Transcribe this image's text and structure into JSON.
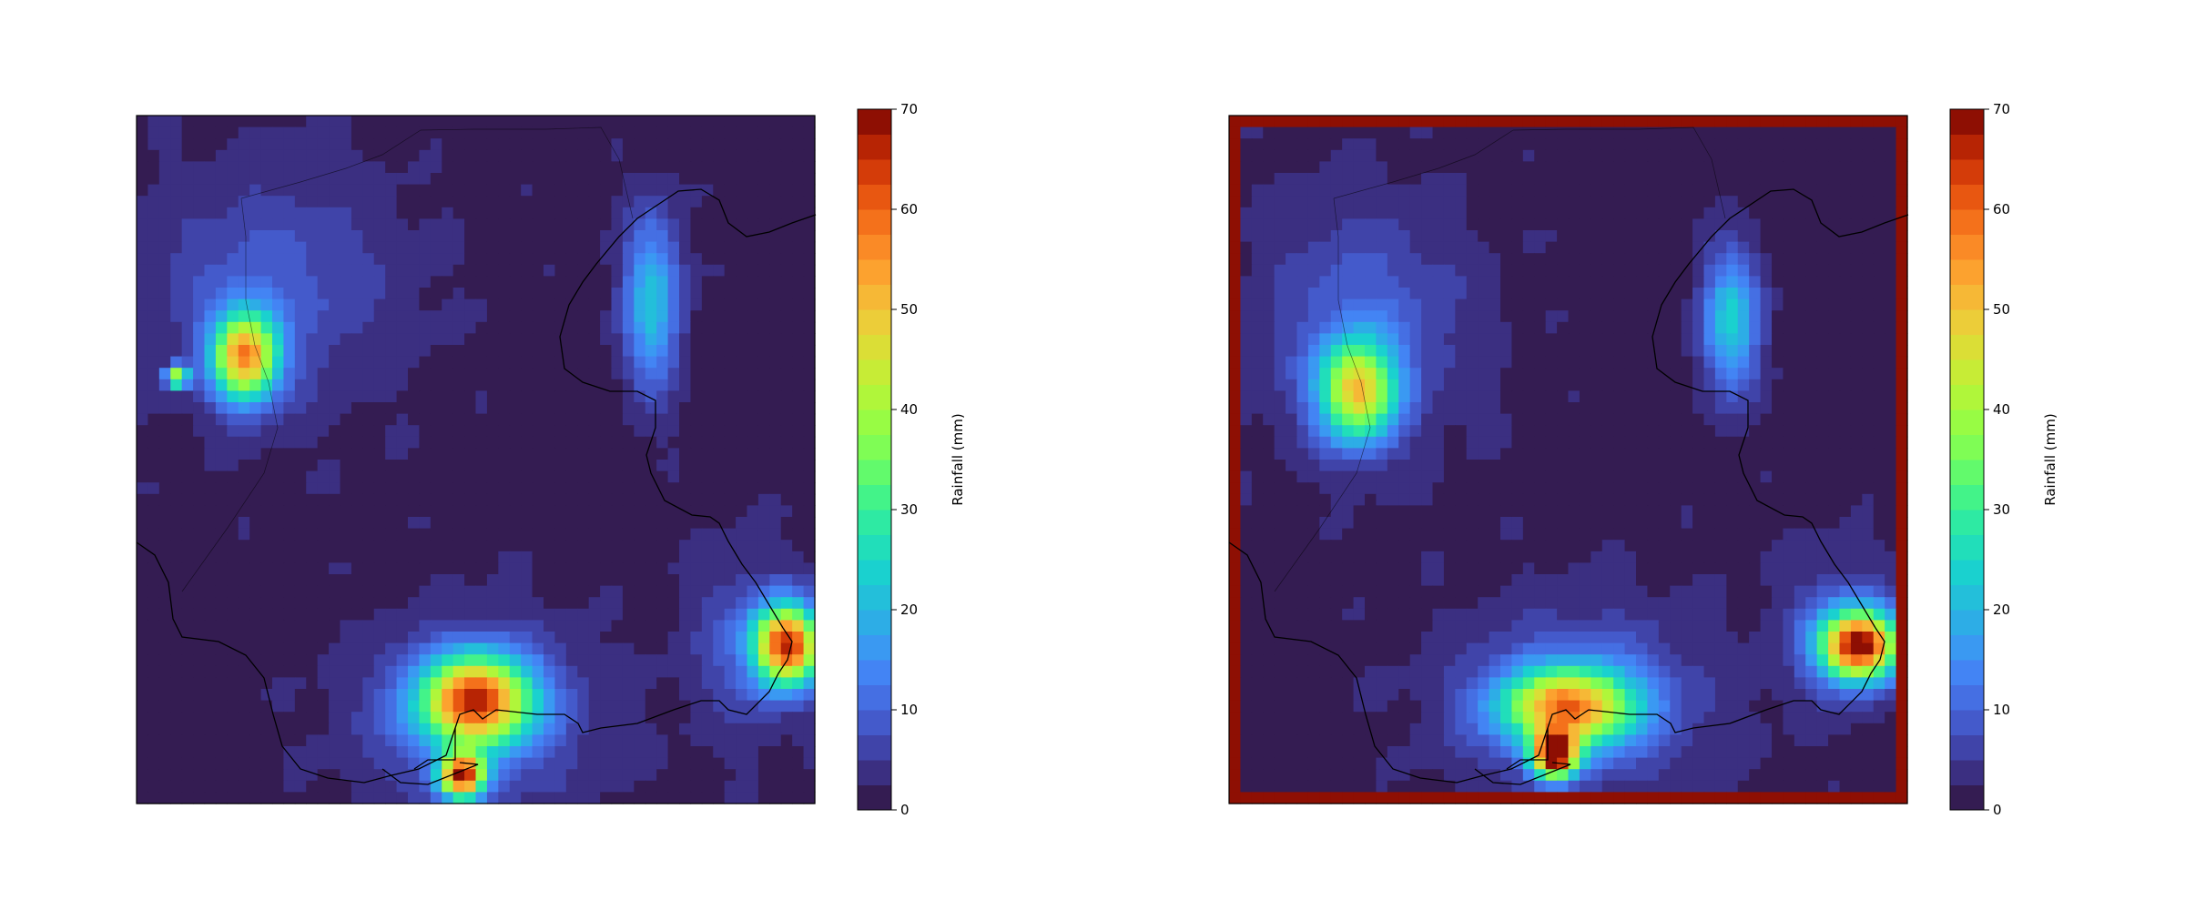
{
  "chart_data": [
    {
      "type": "heatmap",
      "title": "",
      "xlabel": "",
      "ylabel": "",
      "colorbar": {
        "label": "Rainfall (mm)",
        "range": [
          0,
          70
        ],
        "ticks": [
          0,
          10,
          20,
          30,
          40,
          50,
          60,
          70
        ],
        "colormap": "turbo",
        "levels": 28
      },
      "background_value": 1,
      "regions": [
        {
          "name": "west-cluster",
          "cx": 0.16,
          "cy": 0.35,
          "rx": 0.06,
          "ry": 0.08,
          "peak": 52
        },
        {
          "name": "west-broad",
          "cx": 0.2,
          "cy": 0.25,
          "rx": 0.22,
          "ry": 0.2,
          "peak": 7
        },
        {
          "name": "west-spot",
          "cx": 0.06,
          "cy": 0.38,
          "rx": 0.02,
          "ry": 0.02,
          "peak": 40
        },
        {
          "name": "north-east-band",
          "cx": 0.76,
          "cy": 0.27,
          "rx": 0.05,
          "ry": 0.15,
          "peak": 20
        },
        {
          "name": "south-central-broad",
          "cx": 0.5,
          "cy": 0.88,
          "rx": 0.2,
          "ry": 0.16,
          "peak": 9
        },
        {
          "name": "south-central-core",
          "cx": 0.5,
          "cy": 0.85,
          "rx": 0.1,
          "ry": 0.08,
          "peak": 58
        },
        {
          "name": "south-central-cell",
          "cx": 0.48,
          "cy": 0.96,
          "rx": 0.04,
          "ry": 0.04,
          "peak": 60
        },
        {
          "name": "east-cell",
          "cx": 0.96,
          "cy": 0.77,
          "rx": 0.06,
          "ry": 0.07,
          "peak": 62
        },
        {
          "name": "east-broad",
          "cx": 0.9,
          "cy": 0.77,
          "rx": 0.1,
          "ry": 0.15,
          "peak": 7
        }
      ]
    },
    {
      "type": "heatmap",
      "title": "",
      "xlabel": "",
      "ylabel": "",
      "colorbar": {
        "label": "Rainfall (mm)",
        "range": [
          0,
          70
        ],
        "ticks": [
          0,
          10,
          20,
          30,
          40,
          50,
          60,
          70
        ],
        "colormap": "turbo",
        "levels": 28
      },
      "background_value": 1,
      "edge_artifact": {
        "border_value": 68,
        "inner_ring_value": 8
      },
      "regions": [
        {
          "name": "west-cluster",
          "cx": 0.19,
          "cy": 0.4,
          "rx": 0.07,
          "ry": 0.09,
          "peak": 45
        },
        {
          "name": "west-broad",
          "cx": 0.2,
          "cy": 0.3,
          "rx": 0.18,
          "ry": 0.2,
          "peak": 8
        },
        {
          "name": "north-east-band",
          "cx": 0.74,
          "cy": 0.3,
          "rx": 0.05,
          "ry": 0.12,
          "peak": 22
        },
        {
          "name": "south-central-broad",
          "cx": 0.52,
          "cy": 0.85,
          "rx": 0.22,
          "ry": 0.16,
          "peak": 9
        },
        {
          "name": "south-central-core",
          "cx": 0.5,
          "cy": 0.86,
          "rx": 0.12,
          "ry": 0.07,
          "peak": 50
        },
        {
          "name": "south-central-cell",
          "cx": 0.48,
          "cy": 0.93,
          "rx": 0.04,
          "ry": 0.04,
          "peak": 65
        },
        {
          "name": "east-cell",
          "cx": 0.93,
          "cy": 0.77,
          "rx": 0.07,
          "ry": 0.06,
          "peak": 66
        },
        {
          "name": "east-broad",
          "cx": 0.9,
          "cy": 0.75,
          "rx": 0.1,
          "ry": 0.13,
          "peak": 7
        }
      ]
    }
  ]
}
